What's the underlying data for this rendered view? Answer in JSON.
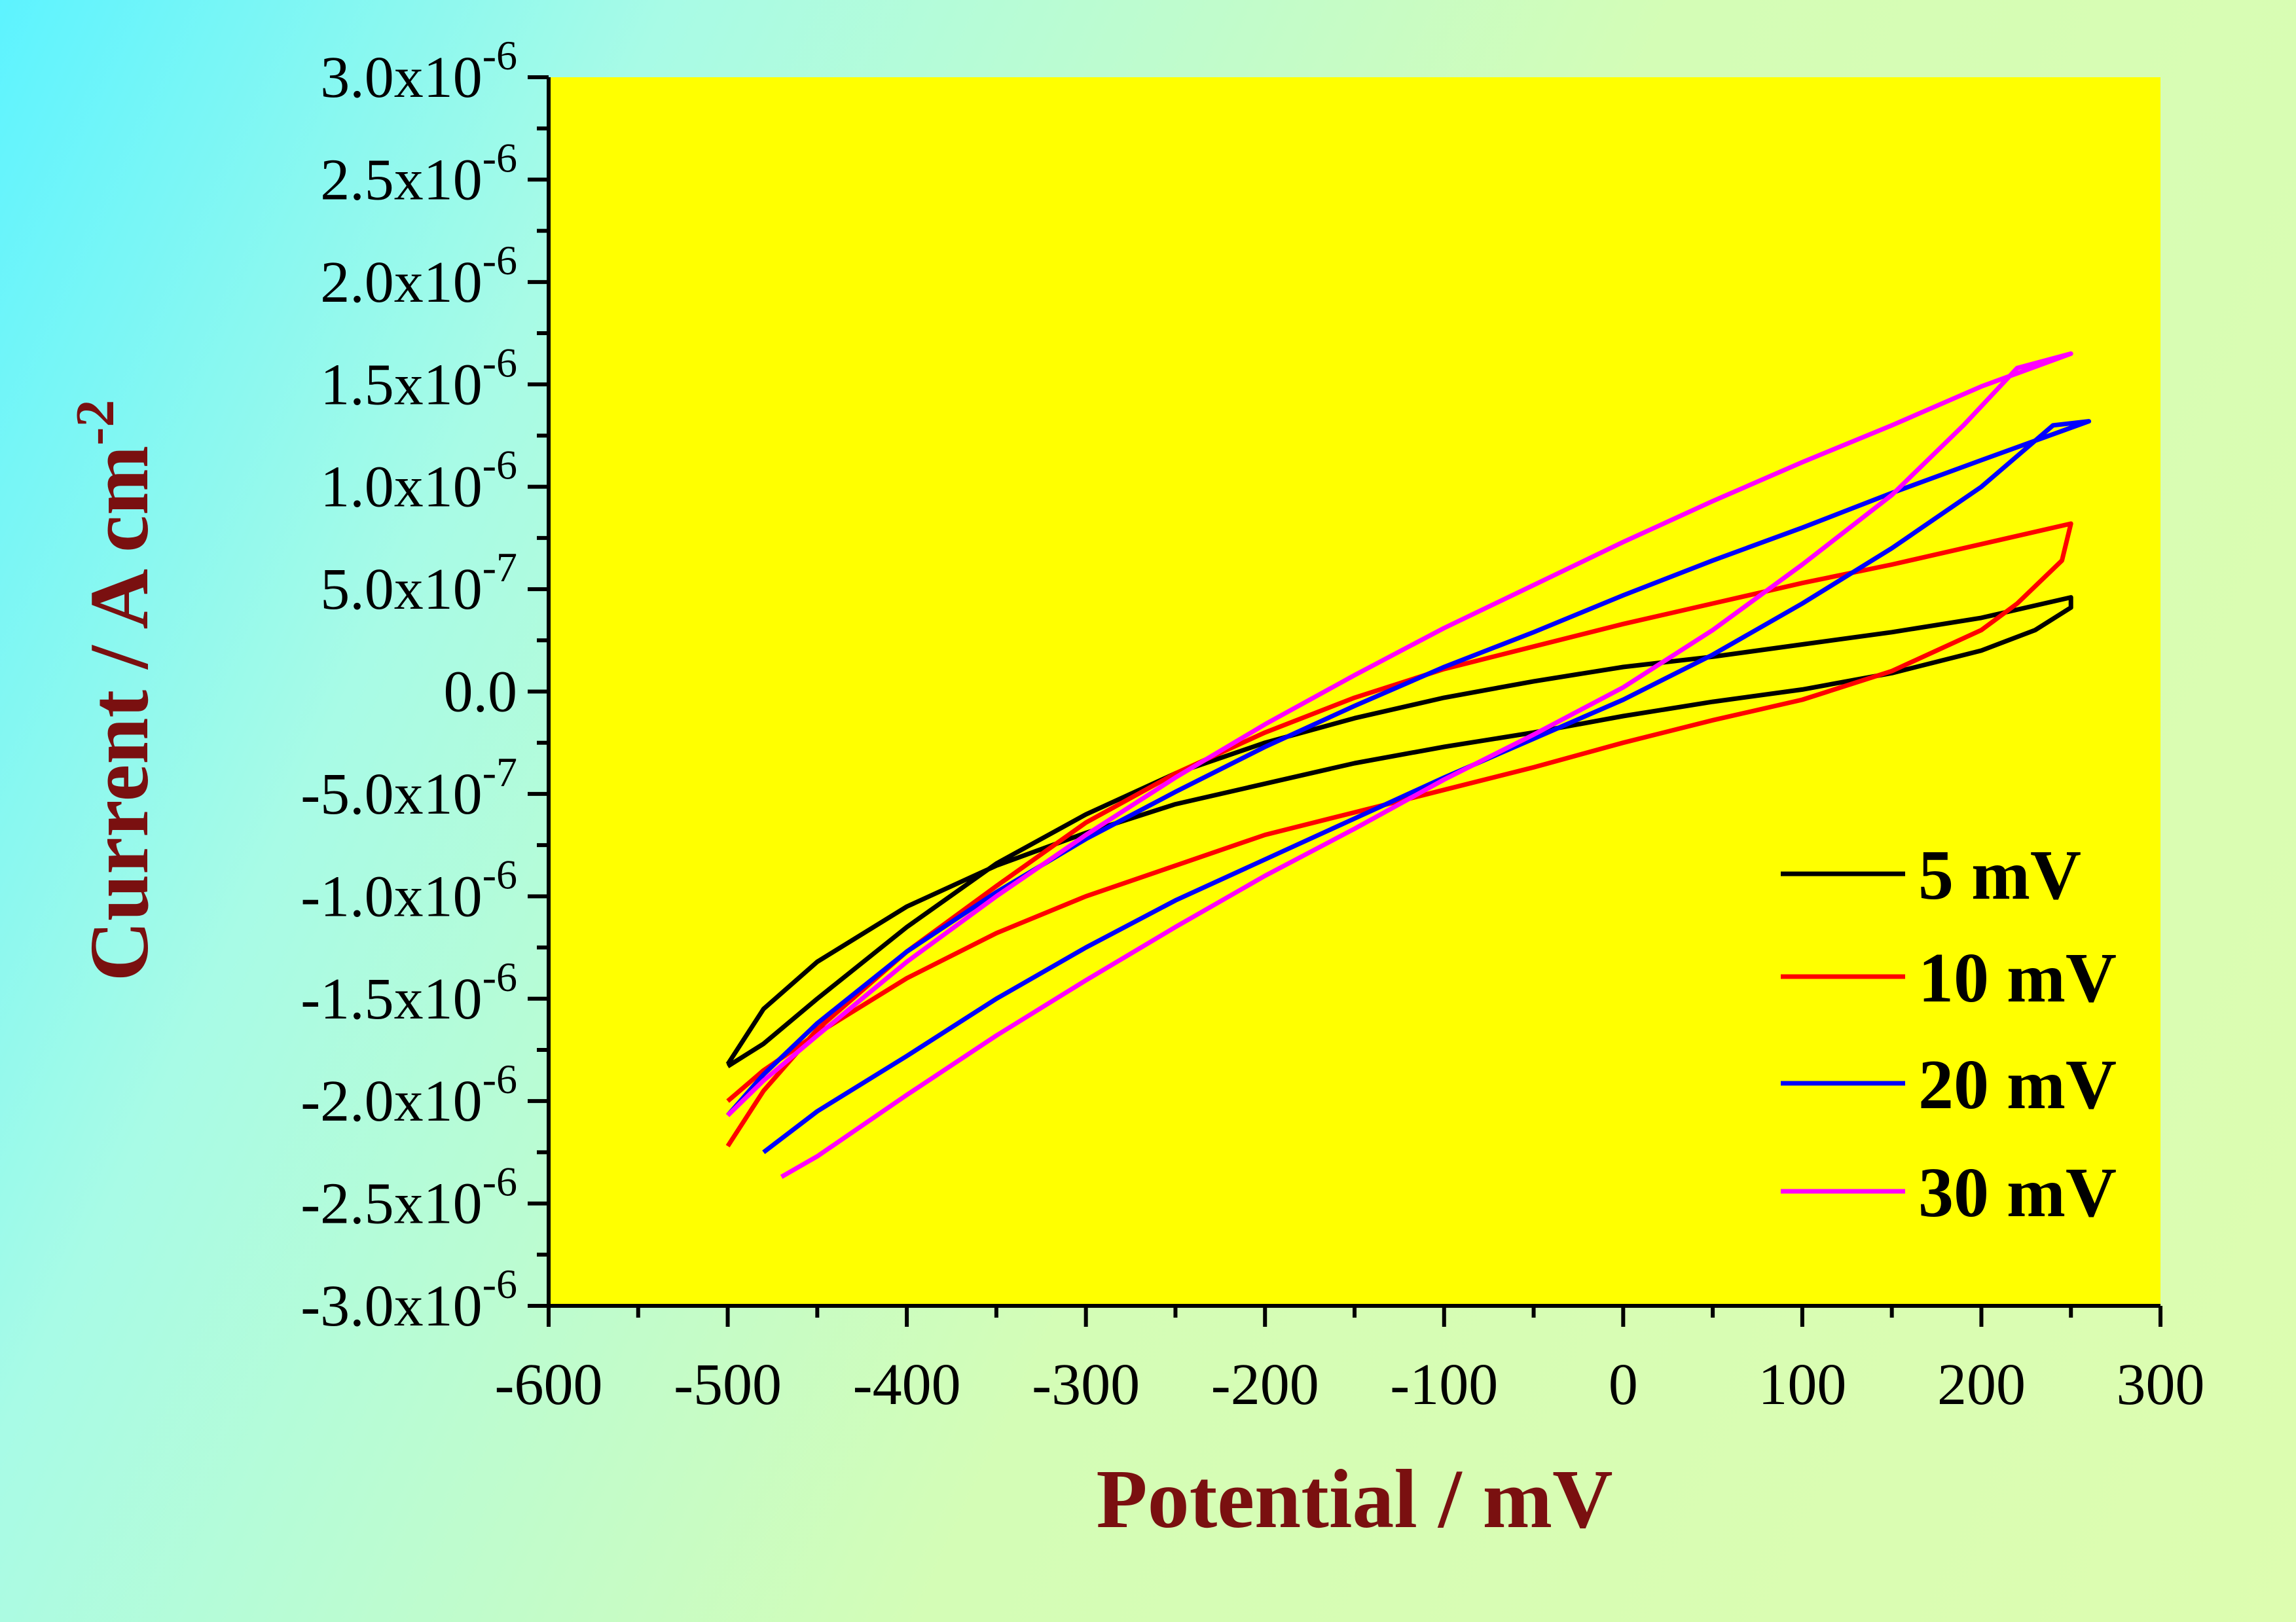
{
  "chart_data": {
    "type": "line",
    "xlabel": "Potential / mV",
    "ylabel": "Current / A cm",
    "ylabel_sup": "-2",
    "xlim": [
      -600,
      300
    ],
    "ylim": [
      -3e-06,
      3e-06
    ],
    "x_ticks": [
      {
        "value": -600,
        "label": "-600"
      },
      {
        "value": -500,
        "label": "-500"
      },
      {
        "value": -400,
        "label": "-400"
      },
      {
        "value": -300,
        "label": "-300"
      },
      {
        "value": -200,
        "label": "-200"
      },
      {
        "value": -100,
        "label": "-100"
      },
      {
        "value": 0,
        "label": "0"
      },
      {
        "value": 100,
        "label": "100"
      },
      {
        "value": 200,
        "label": "200"
      },
      {
        "value": 300,
        "label": "300"
      }
    ],
    "y_ticks": [
      {
        "value": 3e-06,
        "mant": "3.0x10",
        "exp": "-6"
      },
      {
        "value": 2.5e-06,
        "mant": "2.5x10",
        "exp": "-6"
      },
      {
        "value": 2e-06,
        "mant": "2.0x10",
        "exp": "-6"
      },
      {
        "value": 1.5e-06,
        "mant": "1.5x10",
        "exp": "-6"
      },
      {
        "value": 1e-06,
        "mant": "1.0x10",
        "exp": "-6"
      },
      {
        "value": 5e-07,
        "mant": "5.0x10",
        "exp": "-7"
      },
      {
        "value": 0,
        "mant": "0.0",
        "exp": ""
      },
      {
        "value": -5e-07,
        "mant": "-5.0x10",
        "exp": "-7"
      },
      {
        "value": -1e-06,
        "mant": "-1.0x10",
        "exp": "-6"
      },
      {
        "value": -1.5e-06,
        "mant": "-1.5x10",
        "exp": "-6"
      },
      {
        "value": -2e-06,
        "mant": "-2.0x10",
        "exp": "-6"
      },
      {
        "value": -2.5e-06,
        "mant": "-2.5x10",
        "exp": "-6"
      },
      {
        "value": -3e-06,
        "mant": "-3.0x10",
        "exp": "-6"
      }
    ],
    "grid": false,
    "plot_background": "#ffff00",
    "legend_position": "bottom-right",
    "series": [
      {
        "name": "5 mV",
        "color": "#000000",
        "points": [
          [
            -500,
            -1.83e-06
          ],
          [
            -480,
            -1.72e-06
          ],
          [
            -450,
            -1.5e-06
          ],
          [
            -400,
            -1.15e-06
          ],
          [
            -350,
            -8.4e-07
          ],
          [
            -300,
            -6e-07
          ],
          [
            -250,
            -4e-07
          ],
          [
            -200,
            -2.5e-07
          ],
          [
            -150,
            -1.3e-07
          ],
          [
            -100,
            -3e-08
          ],
          [
            -50,
            5e-08
          ],
          [
            0,
            1.2e-07
          ],
          [
            50,
            1.7e-07
          ],
          [
            100,
            2.3e-07
          ],
          [
            150,
            2.9e-07
          ],
          [
            200,
            3.6e-07
          ],
          [
            250,
            4.6e-07
          ],
          [
            250,
            4.1e-07
          ],
          [
            230,
            3e-07
          ],
          [
            200,
            2e-07
          ],
          [
            150,
            9e-08
          ],
          [
            100,
            1e-08
          ],
          [
            50,
            -5e-08
          ],
          [
            0,
            -1.2e-07
          ],
          [
            -50,
            -2e-07
          ],
          [
            -100,
            -2.7e-07
          ],
          [
            -150,
            -3.5e-07
          ],
          [
            -200,
            -4.5e-07
          ],
          [
            -250,
            -5.5e-07
          ],
          [
            -300,
            -6.9e-07
          ],
          [
            -350,
            -8.5e-07
          ],
          [
            -400,
            -1.05e-06
          ],
          [
            -450,
            -1.32e-06
          ],
          [
            -480,
            -1.55e-06
          ],
          [
            -500,
            -1.82e-06
          ]
        ]
      },
      {
        "name": "10 mV",
        "color": "#ff0000",
        "points": [
          [
            -500,
            -2.22e-06
          ],
          [
            -480,
            -1.95e-06
          ],
          [
            -450,
            -1.65e-06
          ],
          [
            -400,
            -1.27e-06
          ],
          [
            -350,
            -9.5e-07
          ],
          [
            -300,
            -6.4e-07
          ],
          [
            -250,
            -4e-07
          ],
          [
            -200,
            -2e-07
          ],
          [
            -150,
            -3e-08
          ],
          [
            -100,
            1.1e-07
          ],
          [
            -50,
            2.2e-07
          ],
          [
            0,
            3.3e-07
          ],
          [
            50,
            4.3e-07
          ],
          [
            100,
            5.3e-07
          ],
          [
            150,
            6.2e-07
          ],
          [
            200,
            7.2e-07
          ],
          [
            250,
            8.2e-07
          ],
          [
            245,
            6.4e-07
          ],
          [
            220,
            4.3e-07
          ],
          [
            200,
            3e-07
          ],
          [
            150,
            1e-07
          ],
          [
            100,
            -4e-08
          ],
          [
            50,
            -1.4e-07
          ],
          [
            0,
            -2.5e-07
          ],
          [
            -50,
            -3.7e-07
          ],
          [
            -100,
            -4.8e-07
          ],
          [
            -150,
            -5.9e-07
          ],
          [
            -200,
            -7e-07
          ],
          [
            -250,
            -8.5e-07
          ],
          [
            -300,
            -1e-06
          ],
          [
            -350,
            -1.18e-06
          ],
          [
            -400,
            -1.4e-06
          ],
          [
            -450,
            -1.67e-06
          ],
          [
            -480,
            -1.85e-06
          ],
          [
            -500,
            -2e-06
          ]
        ]
      },
      {
        "name": "20 mV",
        "color": "#0000ff",
        "points": [
          [
            -480,
            -2.25e-06
          ],
          [
            -450,
            -2.05e-06
          ],
          [
            -400,
            -1.78e-06
          ],
          [
            -350,
            -1.5e-06
          ],
          [
            -300,
            -1.25e-06
          ],
          [
            -250,
            -1.02e-06
          ],
          [
            -200,
            -8.2e-07
          ],
          [
            -150,
            -6.2e-07
          ],
          [
            -100,
            -4.2e-07
          ],
          [
            -50,
            -2.3e-07
          ],
          [
            0,
            -4e-08
          ],
          [
            50,
            1.8e-07
          ],
          [
            100,
            4.3e-07
          ],
          [
            150,
            7e-07
          ],
          [
            200,
            1e-06
          ],
          [
            240,
            1.3e-06
          ],
          [
            260,
            1.32e-06
          ],
          [
            200,
            1.13e-06
          ],
          [
            150,
            9.7e-07
          ],
          [
            100,
            8e-07
          ],
          [
            50,
            6.4e-07
          ],
          [
            0,
            4.7e-07
          ],
          [
            -50,
            2.9e-07
          ],
          [
            -100,
            1.2e-07
          ],
          [
            -150,
            -7e-08
          ],
          [
            -200,
            -2.7e-07
          ],
          [
            -250,
            -4.9e-07
          ],
          [
            -300,
            -7.2e-07
          ],
          [
            -350,
            -9.8e-07
          ],
          [
            -400,
            -1.27e-06
          ],
          [
            -450,
            -1.62e-06
          ],
          [
            -480,
            -1.87e-06
          ],
          [
            -500,
            -2.07e-06
          ]
        ]
      },
      {
        "name": "30 mV",
        "color": "#ff00ff",
        "points": [
          [
            -470,
            -2.37e-06
          ],
          [
            -450,
            -2.27e-06
          ],
          [
            -400,
            -1.97e-06
          ],
          [
            -350,
            -1.68e-06
          ],
          [
            -300,
            -1.41e-06
          ],
          [
            -250,
            -1.15e-06
          ],
          [
            -200,
            -9e-07
          ],
          [
            -150,
            -6.7e-07
          ],
          [
            -100,
            -4.3e-07
          ],
          [
            -50,
            -2.1e-07
          ],
          [
            0,
            2e-08
          ],
          [
            50,
            3e-07
          ],
          [
            100,
            6.2e-07
          ],
          [
            150,
            9.6e-07
          ],
          [
            190,
            1.3e-06
          ],
          [
            220,
            1.58e-06
          ],
          [
            250,
            1.65e-06
          ],
          [
            200,
            1.49e-06
          ],
          [
            150,
            1.3e-06
          ],
          [
            100,
            1.12e-06
          ],
          [
            50,
            9.3e-07
          ],
          [
            0,
            7.3e-07
          ],
          [
            -50,
            5.2e-07
          ],
          [
            -100,
            3.1e-07
          ],
          [
            -150,
            8e-08
          ],
          [
            -200,
            -1.6e-07
          ],
          [
            -250,
            -4.2e-07
          ],
          [
            -300,
            -7e-07
          ],
          [
            -350,
            -1e-06
          ],
          [
            -400,
            -1.32e-06
          ],
          [
            -450,
            -1.68e-06
          ],
          [
            -480,
            -1.9e-06
          ],
          [
            -500,
            -2.07e-06
          ]
        ]
      }
    ]
  }
}
